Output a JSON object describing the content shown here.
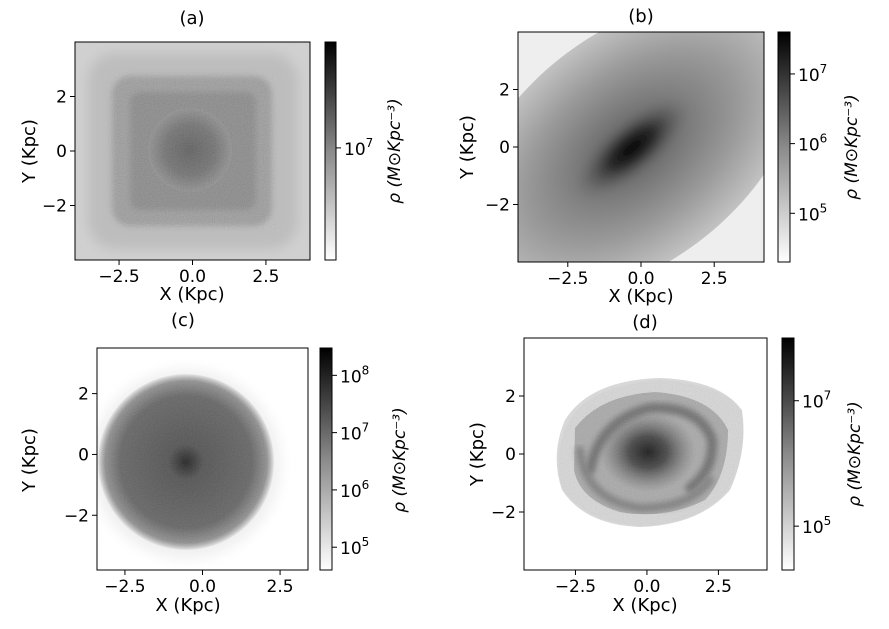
{
  "chart_data": [
    {
      "type": "heatmap",
      "panel": "(a)",
      "xlabel": "X (Kpc)",
      "ylabel": "Y (Kpc)",
      "colorbar_label": "ρ (M⊙Kpc⁻³)",
      "colorbar_scale": "log",
      "colorbar_ticks": [
        "10^7"
      ],
      "colorbar_tick_values": [
        10000000
      ],
      "colorbar_range": [
        1500000,
        60000000
      ],
      "xlim": [
        -4,
        4
      ],
      "ylim": [
        -4,
        4
      ],
      "xticks": [
        -2.5,
        0.0,
        2.5
      ],
      "xtick_labels": [
        "−2.5",
        "0.0",
        "2.5"
      ],
      "yticks": [
        -2,
        0,
        2
      ],
      "ytick_labels": [
        "−2",
        "0",
        "2"
      ],
      "colormap": "Greys",
      "morphology": "square-shaped density distribution with grainy dense core",
      "colors": {
        "high": "#000000",
        "low": "#ffffff"
      }
    },
    {
      "type": "heatmap",
      "panel": "(b)",
      "xlabel": "X (Kpc)",
      "ylabel": "Y (Kpc)",
      "colorbar_label": "ρ (M⊙Kpc⁻³)",
      "colorbar_scale": "log",
      "colorbar_ticks": [
        "10^5",
        "10^6",
        "10^7"
      ],
      "colorbar_tick_values": [
        100000,
        1000000,
        10000000
      ],
      "colorbar_range": [
        20000,
        40000000
      ],
      "xlim": [
        -4.2,
        4.2
      ],
      "ylim": [
        -4,
        4
      ],
      "xticks": [
        -2.5,
        0.0,
        2.5
      ],
      "xtick_labels": [
        "−2.5",
        "0.0",
        "2.5"
      ],
      "yticks": [
        -2,
        0,
        2
      ],
      "ytick_labels": [
        "−2",
        "0",
        "2"
      ],
      "colormap": "Greys",
      "morphology": "smooth elongated bar tilted ~40° with dense centre"
    },
    {
      "type": "heatmap",
      "panel": "(c)",
      "xlabel": "X (Kpc)",
      "ylabel": "Y (Kpc)",
      "colorbar_label": "ρ (M⊙Kpc⁻³)",
      "colorbar_scale": "log",
      "colorbar_ticks": [
        "10^5",
        "10^6",
        "10^7",
        "10^8"
      ],
      "colorbar_tick_values": [
        100000,
        1000000,
        10000000,
        100000000
      ],
      "colorbar_range": [
        40000,
        300000000
      ],
      "xlim": [
        -3.4,
        3.4
      ],
      "ylim": [
        -3.8,
        3.5
      ],
      "xticks": [
        -2.5,
        0.0,
        2.5
      ],
      "xtick_labels": [
        "−2.5",
        "0.0",
        "2.5"
      ],
      "yticks": [
        -2,
        0,
        2
      ],
      "ytick_labels": [
        "−2",
        "0",
        "2"
      ],
      "colormap": "Greys",
      "morphology": "round disc with dense centre, fading light edge"
    },
    {
      "type": "heatmap",
      "panel": "(d)",
      "xlabel": "X (Kpc)",
      "ylabel": "Y (Kpc)",
      "colorbar_label": "ρ (M⊙Kpc⁻³)",
      "colorbar_scale": "log",
      "colorbar_ticks": [
        "10^5",
        "10^7"
      ],
      "colorbar_tick_values": [
        100000,
        10000000
      ],
      "colorbar_range": [
        20000,
        100000000
      ],
      "xlim": [
        -4.3,
        4.2
      ],
      "ylim": [
        -4,
        4
      ],
      "xticks": [
        -2.5,
        0.0,
        2.5
      ],
      "xtick_labels": [
        "−2.5",
        "0.0",
        "2.5"
      ],
      "yticks": [
        -2,
        0,
        2
      ],
      "ytick_labels": [
        "−2",
        "0",
        "2"
      ],
      "colormap": "Greys",
      "morphology": "spiral disc with arms and dense nucleus"
    }
  ]
}
